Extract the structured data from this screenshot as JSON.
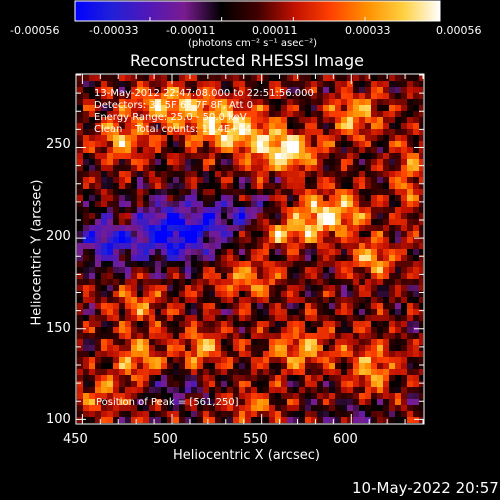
{
  "colorbar": {
    "tick_labels": [
      "-0.00056",
      "-0.00033",
      "-0.00011",
      "0.00011",
      "0.00033",
      "0.00056"
    ],
    "tick_values": [
      -0.00056,
      -0.00033,
      -0.00011,
      0.00011,
      0.00033,
      0.00056
    ],
    "units_line": "(photons cm⁻² s⁻¹ asec⁻²)",
    "colormap": [
      "#0000ff",
      "#2020d8",
      "#5018b8",
      "#7a1c90",
      "#000000",
      "#400000",
      "#c01000",
      "#ff4000",
      "#ff9000",
      "#ffd040",
      "#ffffff"
    ],
    "range": [
      -0.00056,
      0.00056
    ]
  },
  "chart_data": {
    "type": "heatmap",
    "title": "Reconstructed RHESSI Image",
    "xlabel": "Heliocentric X (arcsec)",
    "ylabel": "Heliocentric Y (arcsec)",
    "xlim": [
      447,
      640
    ],
    "ylim": [
      98,
      290
    ],
    "xticks": [
      450,
      500,
      550,
      600
    ],
    "yticks": [
      100,
      150,
      200,
      250
    ],
    "peak": [
      561,
      250
    ],
    "annotations": {
      "time_range": "13-May-2012 22:47:08.000 to 22:51:56.000",
      "detectors": "Detectors: 3F 5F 6F 7F 8F, Att 0",
      "energy": "Energy Range: 25.0 - 50.0 keV",
      "clean": "Clean    Total counts: 1.14E+04",
      "peak_text": "Position of Peak = [561,250]"
    }
  },
  "footer": {
    "date": "10-May-2022 20:57"
  }
}
